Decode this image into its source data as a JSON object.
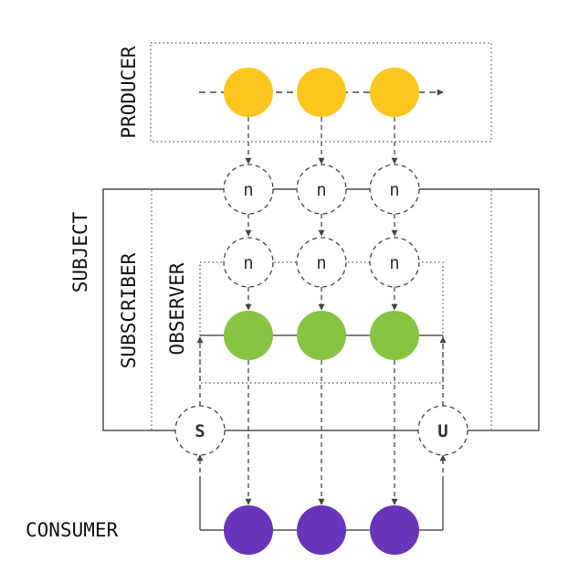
{
  "labels": {
    "producer": "PRODUCER",
    "subject": "SUBJECT",
    "subscriber": "SUBSCRIBER",
    "observer": "OBSERVER",
    "consumer": "CONSUMER"
  },
  "notification_glyph": "n",
  "subscribe_glyph": "S",
  "unsubscribe_glyph": "U",
  "colors": {
    "producer": "#FDC61E",
    "observer": "#86C441",
    "consumer": "#6734BA",
    "line": "#444444"
  }
}
